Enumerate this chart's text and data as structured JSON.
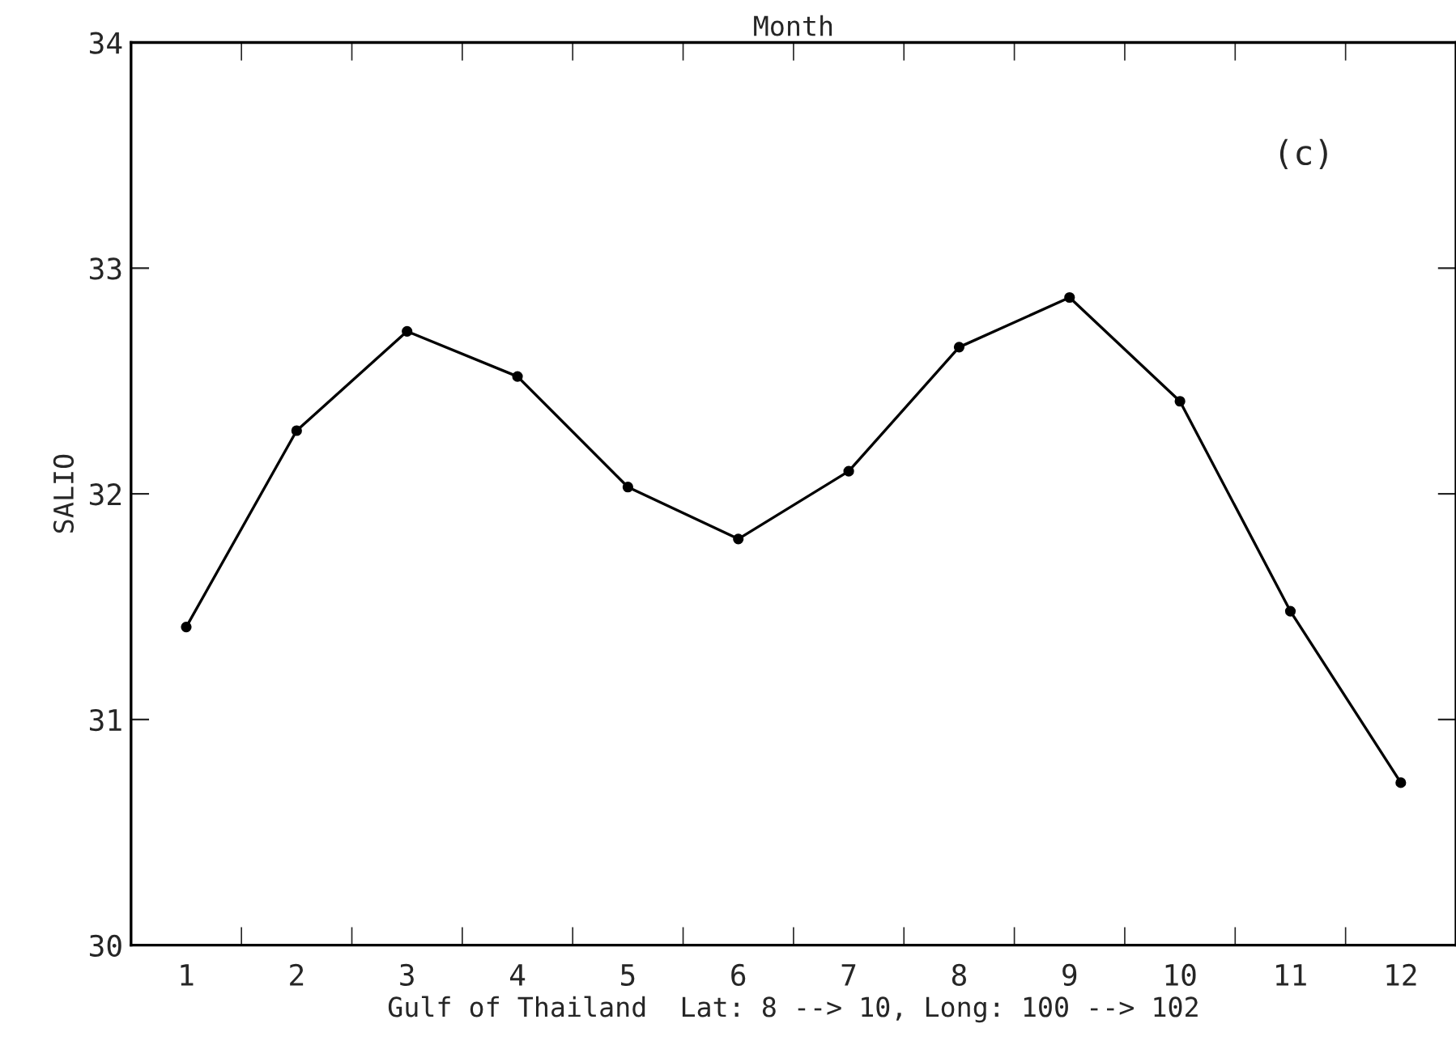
{
  "chart_data": {
    "type": "line",
    "title": "Month",
    "xlabel": "Gulf of Thailand  Lat: 8 --> 10, Long: 100 --> 102",
    "ylabel": "SALIO",
    "categories": [
      "1",
      "2",
      "3",
      "4",
      "5",
      "6",
      "7",
      "8",
      "9",
      "10",
      "11",
      "12"
    ],
    "series": [
      {
        "color": "#000000",
        "values": [
          31.41,
          32.28,
          32.72,
          32.52,
          32.03,
          31.8,
          32.1,
          32.65,
          32.87,
          32.41,
          31.48,
          30.72
        ]
      }
    ],
    "ylim": [
      30,
      34
    ],
    "yticks": [
      30,
      31,
      32,
      33,
      34
    ],
    "marker": "circle",
    "line_style": "solid",
    "grid": false,
    "legend": false,
    "annotations": [
      "(c)"
    ]
  }
}
